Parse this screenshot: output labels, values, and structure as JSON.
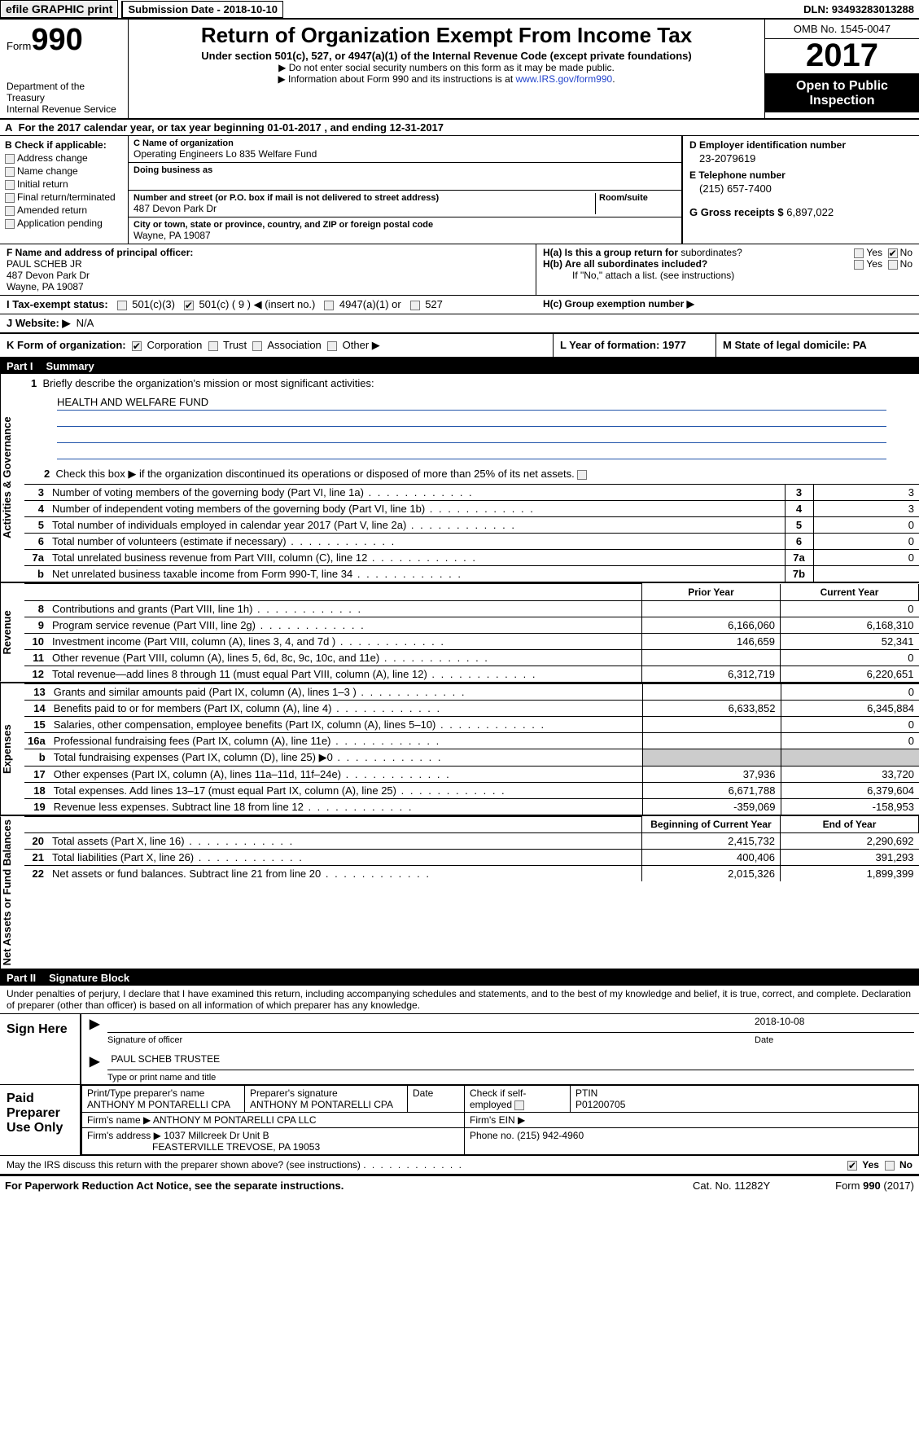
{
  "topbar": {
    "efile": "efile GRAPHIC print - Submission Date - 2018-10-10",
    "efile_btn": "efile GRAPHIC print",
    "submission": "Submission Date - 2018-10-10",
    "dln": "DLN: 93493283013288"
  },
  "header": {
    "form_word": "Form",
    "form_no": "990",
    "dept1": "Department of the Treasury",
    "dept2": "Internal Revenue Service",
    "title": "Return of Organization Exempt From Income Tax",
    "sub": "Under section 501(c), 527, or 4947(a)(1) of the Internal Revenue Code (except private foundations)",
    "note1": "Do not enter social security numbers on this form as it may be made public.",
    "note2": "Information about Form 990 and its instructions is at ",
    "link": "www.IRS.gov/form990",
    "omb": "OMB No. 1545-0047",
    "year": "2017",
    "open1": "Open to Public",
    "open2": "Inspection"
  },
  "A": {
    "text_a": "A",
    "text": "For the 2017 calendar year, or tax year beginning 01-01-2017   , and ending 12-31-2017"
  },
  "B": {
    "hdr": "B Check if applicable:",
    "opts": [
      "Address change",
      "Name change",
      "Initial return",
      "Final return/terminated",
      "Amended return",
      "Application pending"
    ]
  },
  "C": {
    "name_lbl": "C Name of organization",
    "name": "Operating Engineers Lo 835 Welfare Fund",
    "dba_lbl": "Doing business as",
    "addr_lbl": "Number and street (or P.O. box if mail is not delivered to street address)",
    "room_lbl": "Room/suite",
    "addr": "487 Devon Park Dr",
    "city_lbl": "City or town, state or province, country, and ZIP or foreign postal code",
    "city": "Wayne, PA  19087"
  },
  "D": {
    "ein_lbl": "D Employer identification number",
    "ein": "23-2079619",
    "tel_lbl": "E Telephone number",
    "tel": "(215) 657-7400",
    "gross_lbl": "G Gross receipts $",
    "gross": "6,897,022"
  },
  "F": {
    "lbl": "F  Name and address of principal officer:",
    "name": "PAUL SCHEB JR",
    "addr1": "487 Devon Park Dr",
    "addr2": "Wayne, PA  19087"
  },
  "H": {
    "a": "H(a)  Is this a group return for",
    "a2": "subordinates?",
    "b": "H(b)  Are all subordinates included?",
    "b2": "If \"No,\" attach a list. (see instructions)",
    "c": "H(c)  Group exemption number ▶",
    "yes": "Yes",
    "no": "No"
  },
  "I": {
    "lbl": "I  Tax-exempt status:",
    "o1": "501(c)(3)",
    "o2": "501(c) ( 9 ) ◀ (insert no.)",
    "o3": "4947(a)(1) or",
    "o4": "527"
  },
  "J": {
    "lbl": "J  Website: ▶",
    "val": "N/A"
  },
  "K": {
    "lbl": "K Form of organization:",
    "o1": "Corporation",
    "o2": "Trust",
    "o3": "Association",
    "o4": "Other ▶",
    "L": "L Year of formation: 1977",
    "M": "M State of legal domicile: PA"
  },
  "part1": {
    "hdr_num": "Part I",
    "hdr": "Summary",
    "side1": "Activities & Governance",
    "side2": "Revenue",
    "side3": "Expenses",
    "side4": "Net Assets or Fund Balances",
    "l1": "Briefly describe the organization's mission or most significant activities:",
    "mission": "HEALTH AND WELFARE FUND",
    "l2": "Check this box ▶       if the organization discontinued its operations or disposed of more than 25% of its net assets.",
    "rows_gov": [
      {
        "n": "3",
        "t": "Number of voting members of the governing body (Part VI, line 1a)",
        "b": "3",
        "v": "3"
      },
      {
        "n": "4",
        "t": "Number of independent voting members of the governing body (Part VI, line 1b)",
        "b": "4",
        "v": "3"
      },
      {
        "n": "5",
        "t": "Total number of individuals employed in calendar year 2017 (Part V, line 2a)",
        "b": "5",
        "v": "0"
      },
      {
        "n": "6",
        "t": "Total number of volunteers (estimate if necessary)",
        "b": "6",
        "v": "0"
      },
      {
        "n": "7a",
        "t": "Total unrelated business revenue from Part VIII, column (C), line 12",
        "b": "7a",
        "v": "0"
      },
      {
        "n": "b",
        "t": "Net unrelated business taxable income from Form 990-T, line 34",
        "b": "7b",
        "v": ""
      }
    ],
    "col_prior": "Prior Year",
    "col_current": "Current Year",
    "rows_rev": [
      {
        "n": "8",
        "t": "Contributions and grants (Part VIII, line 1h)",
        "p": "",
        "c": "0"
      },
      {
        "n": "9",
        "t": "Program service revenue (Part VIII, line 2g)",
        "p": "6,166,060",
        "c": "6,168,310"
      },
      {
        "n": "10",
        "t": "Investment income (Part VIII, column (A), lines 3, 4, and 7d )",
        "p": "146,659",
        "c": "52,341"
      },
      {
        "n": "11",
        "t": "Other revenue (Part VIII, column (A), lines 5, 6d, 8c, 9c, 10c, and 11e)",
        "p": "",
        "c": "0"
      },
      {
        "n": "12",
        "t": "Total revenue—add lines 8 through 11 (must equal Part VIII, column (A), line 12)",
        "p": "6,312,719",
        "c": "6,220,651"
      }
    ],
    "rows_exp": [
      {
        "n": "13",
        "t": "Grants and similar amounts paid (Part IX, column (A), lines 1–3 )",
        "p": "",
        "c": "0"
      },
      {
        "n": "14",
        "t": "Benefits paid to or for members (Part IX, column (A), line 4)",
        "p": "6,633,852",
        "c": "6,345,884"
      },
      {
        "n": "15",
        "t": "Salaries, other compensation, employee benefits (Part IX, column (A), lines 5–10)",
        "p": "",
        "c": "0"
      },
      {
        "n": "16a",
        "t": "Professional fundraising fees (Part IX, column (A), line 11e)",
        "p": "",
        "c": "0"
      },
      {
        "n": "b",
        "t": "Total fundraising expenses (Part IX, column (D), line 25) ▶0",
        "p": "SHADE",
        "c": "SHADE"
      },
      {
        "n": "17",
        "t": "Other expenses (Part IX, column (A), lines 11a–11d, 11f–24e)",
        "p": "37,936",
        "c": "33,720"
      },
      {
        "n": "18",
        "t": "Total expenses. Add lines 13–17 (must equal Part IX, column (A), line 25)",
        "p": "6,671,788",
        "c": "6,379,604"
      },
      {
        "n": "19",
        "t": "Revenue less expenses. Subtract line 18 from line 12",
        "p": "-359,069",
        "c": "-158,953"
      }
    ],
    "col_begin": "Beginning of Current Year",
    "col_end": "End of Year",
    "rows_net": [
      {
        "n": "20",
        "t": "Total assets (Part X, line 16)",
        "p": "2,415,732",
        "c": "2,290,692"
      },
      {
        "n": "21",
        "t": "Total liabilities (Part X, line 26)",
        "p": "400,406",
        "c": "391,293"
      },
      {
        "n": "22",
        "t": "Net assets or fund balances. Subtract line 21 from line 20",
        "p": "2,015,326",
        "c": "1,899,399"
      }
    ]
  },
  "part2": {
    "hdr_num": "Part II",
    "hdr": "Signature Block",
    "perjury": "Under penalties of perjury, I declare that I have examined this return, including accompanying schedules and statements, and to the best of my knowledge and belief, it is true, correct, and complete. Declaration of preparer (other than officer) is based on all information of which preparer has any knowledge.",
    "sign_here": "Sign Here",
    "sig_off": "Signature of officer",
    "date_lbl": "Date",
    "date": "2018-10-08",
    "officer": "PAUL SCHEB TRUSTEE",
    "typeprint": "Type or print name and title",
    "paid": "Paid Preparer Use Only",
    "prep_name_lbl": "Print/Type preparer's name",
    "prep_name": "ANTHONY M PONTARELLI CPA",
    "prep_sig_lbl": "Preparer's signature",
    "prep_sig": "ANTHONY M PONTARELLI CPA",
    "check_self": "Check         if self-employed",
    "ptin_lbl": "PTIN",
    "ptin": "P01200705",
    "firm_name_lbl": "Firm's name      ▶",
    "firm_name": "ANTHONY M PONTARELLI CPA LLC",
    "firm_ein_lbl": "Firm's EIN ▶",
    "firm_addr_lbl": "Firm's address ▶",
    "firm_addr1": "1037 Millcreek Dr Unit B",
    "firm_addr2": "FEASTERVILLE TREVOSE, PA  19053",
    "phone_lbl": "Phone no.",
    "phone": "(215) 942-4960",
    "discuss": "May the IRS discuss this return with the preparer shown above? (see instructions)"
  },
  "footer": {
    "pra": "For Paperwork Reduction Act Notice, see the separate instructions.",
    "cat": "Cat. No. 11282Y",
    "form": "Form 990 (2017)"
  }
}
